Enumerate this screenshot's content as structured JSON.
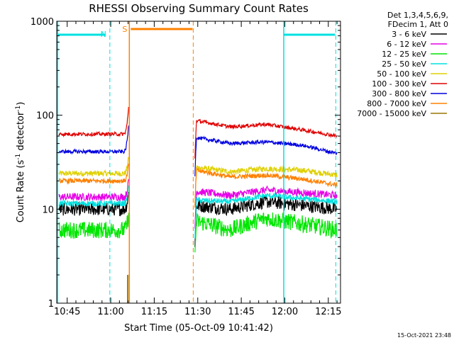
{
  "chart_data": {
    "type": "line",
    "title": "RHESSI Observing Summary Count Rates",
    "xlabel": "Start Time (05-Oct-09 10:41:42)",
    "ylabel_main": "Count Rate (s",
    "ylabel_sup1": "-1",
    "ylabel_mid": " detector",
    "ylabel_sup2": "-1",
    "ylabel_end": ")",
    "ylog": true,
    "ylim": [
      1,
      1000
    ],
    "xlim_minutes": [
      10.69,
      12.32
    ],
    "x_ticks": [
      {
        "h": 10.75,
        "label": "10:45"
      },
      {
        "h": 11.0,
        "label": "11:00"
      },
      {
        "h": 11.25,
        "label": "11:15"
      },
      {
        "h": 11.5,
        "label": "11:30"
      },
      {
        "h": 11.75,
        "label": "11:45"
      },
      {
        "h": 12.0,
        "label": "12:00"
      },
      {
        "h": 12.25,
        "label": "12:15"
      }
    ],
    "y_ticks": [
      {
        "v": 1,
        "label": "1"
      },
      {
        "v": 10,
        "label": "10"
      },
      {
        "v": 100,
        "label": "100"
      },
      {
        "v": 1000,
        "label": "1000"
      }
    ],
    "legend_header": [
      "Det 1,3,4,5,6,9,",
      "FDecim 1, Att 0"
    ],
    "series": [
      {
        "name": "3 - 6 keV",
        "color": "#000000",
        "pre": 10,
        "post": [
          11,
          10,
          12,
          11,
          10
        ]
      },
      {
        "name": "6 - 12 keV",
        "color": "#e600e6",
        "pre": 13.5,
        "post": [
          15.5,
          14,
          16,
          15,
          14
        ]
      },
      {
        "name": "12 - 25 keV",
        "color": "#00e600",
        "pre": 6,
        "post": [
          7.5,
          6,
          8,
          7,
          6
        ]
      },
      {
        "name": "25 - 50 keV",
        "color": "#00e0e0",
        "pre": 11.5,
        "post": [
          12.5,
          12,
          14,
          13,
          12
        ]
      },
      {
        "name": "50 - 100 keV",
        "color": "#e0d000",
        "pre": 24,
        "post": [
          28,
          25,
          27,
          26,
          23
        ]
      },
      {
        "name": "100 - 300 keV",
        "color": "#e00000",
        "pre": 63,
        "post": [
          88,
          75,
          80,
          70,
          60
        ]
      },
      {
        "name": "300 - 800 keV",
        "color": "#0000e0",
        "pre": 41,
        "post": [
          58,
          50,
          52,
          48,
          39
        ]
      },
      {
        "name": "800 - 7000 keV",
        "color": "#ff8000",
        "pre": 20,
        "post": [
          26,
          22,
          23,
          21,
          18
        ]
      },
      {
        "name": "7000 - 15000 keV",
        "color": "#997700",
        "pre": null,
        "post": null
      }
    ],
    "flags": {
      "night_label": "N",
      "saa_label": "S",
      "night_color": "#00e0e0",
      "saa_color": "#ff8000"
    },
    "footer_date": "15-Oct-2021 23:48"
  }
}
